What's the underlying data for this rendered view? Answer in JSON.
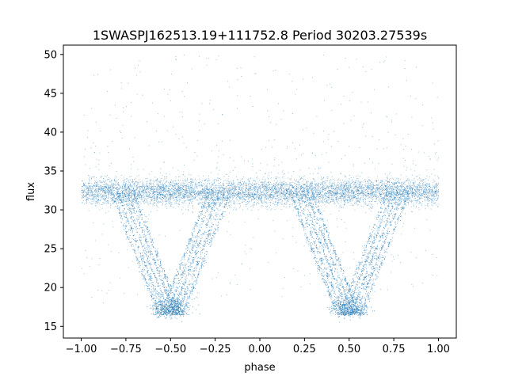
{
  "chart_data": {
    "type": "scatter",
    "title": "1SWASPJ162513.19+111752.8 Period 30203.27539s",
    "xlabel": "phase",
    "ylabel": "flux",
    "xlim": [
      -1.1,
      1.1
    ],
    "ylim": [
      13.5,
      51.2
    ],
    "x_ticks": [
      -1.0,
      -0.75,
      -0.5,
      -0.25,
      0.0,
      0.25,
      0.5,
      0.75,
      1.0
    ],
    "x_tick_labels": [
      "−1.00",
      "−0.75",
      "−0.50",
      "−0.25",
      "0.00",
      "0.25",
      "0.50",
      "0.75",
      "1.00"
    ],
    "y_ticks": [
      15,
      20,
      25,
      30,
      35,
      40,
      45,
      50
    ],
    "y_tick_labels": [
      "15",
      "20",
      "25",
      "30",
      "35",
      "40",
      "45",
      "50"
    ],
    "grid": false,
    "legend": "none",
    "marker_color": "#1f77b4",
    "series": [
      {
        "description_of_structure": "phase-folded light curve, repeated over two cycles (phase -1 to 1)",
        "baseline_flux": 32.3,
        "baseline_scatter": 1.0,
        "eclipse_minima_phase": [
          -0.5,
          0.5
        ],
        "eclipse_min_flux": 16.5,
        "eclipse_half_width_phase": 0.27,
        "outlier_range": [
          33,
          50
        ]
      }
    ]
  }
}
